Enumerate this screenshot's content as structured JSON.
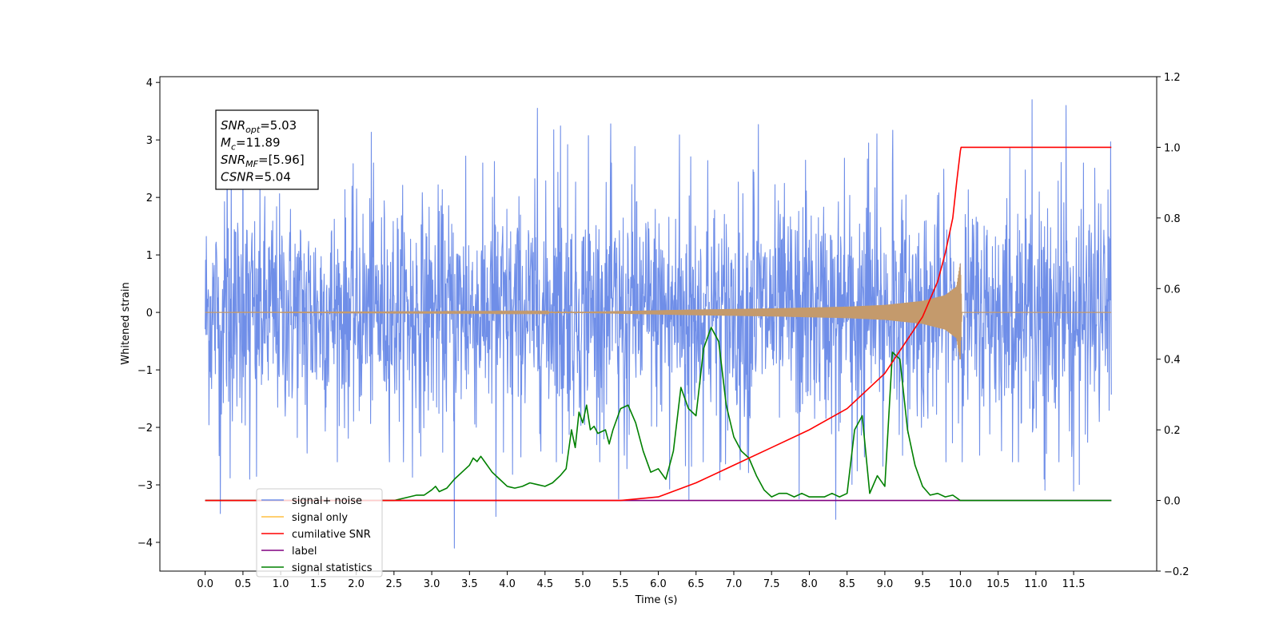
{
  "chart_data": {
    "type": "line",
    "title": "",
    "xlabel": "Time (s)",
    "ylabel": "Whitened strain",
    "xlim": [
      -0.6,
      12.6
    ],
    "ylim": [
      -4.5,
      4.1
    ],
    "y2lim": [
      -0.2,
      1.2
    ],
    "x_ticks": [
      0.0,
      0.5,
      1.0,
      1.5,
      2.0,
      2.5,
      3.0,
      3.5,
      4.0,
      4.5,
      5.0,
      5.5,
      6.0,
      6.5,
      7.0,
      7.5,
      8.0,
      8.5,
      9.0,
      9.5,
      10.0,
      10.5,
      11.0,
      11.5
    ],
    "x_tick_labels": [
      "0.0",
      "0.5",
      "1.0",
      "1.5",
      "2.0",
      "2.5",
      "3.0",
      "3.5",
      "4.0",
      "4.5",
      "5.0",
      "5.5",
      "6.0",
      "6.5",
      "7.0",
      "7.5",
      "8.0",
      "8.5",
      "9.0",
      "9.5",
      "10.0",
      "10.5",
      "11.0",
      "11.5"
    ],
    "y_ticks": [
      -4,
      -3,
      -2,
      -1,
      0,
      1,
      2,
      3,
      4
    ],
    "y_tick_labels": [
      "−4",
      "−3",
      "−2",
      "−1",
      "0",
      "1",
      "2",
      "3",
      "4"
    ],
    "y2_ticks": [
      -0.2,
      0.0,
      0.2,
      0.4,
      0.6,
      0.8,
      1.0,
      1.2
    ],
    "y2_tick_labels": [
      "−0.2",
      "0.0",
      "0.2",
      "0.4",
      "0.6",
      "0.8",
      "1.0",
      "1.2"
    ],
    "grid": false,
    "legend_position": "lower-left",
    "series": [
      {
        "name": "signal+ noise",
        "axis": "left",
        "color": "#6f8ee8",
        "description": "whitened noise, roughly within -2.3 to 2.3 with spikes up to about 3.7 and down to about -4.1",
        "x_range": [
          0.0,
          12.0
        ],
        "peaks": [
          [
            0.29,
            3.0
          ],
          [
            0.5,
            3.5
          ],
          [
            3.3,
            -4.1
          ],
          [
            4.4,
            3.55
          ],
          [
            8.35,
            -3.6
          ],
          [
            10.95,
            3.7
          ],
          [
            11.4,
            3.6
          ],
          [
            3.85,
            -3.55
          ],
          [
            0.2,
            -3.5
          ]
        ]
      },
      {
        "name": "signal only",
        "axis": "left",
        "color": "#c49a6c",
        "description": "chirp signal growing in amplitude until merger at t=10.0",
        "envelope": {
          "x": [
            0.0,
            5.0,
            6.5,
            7.5,
            8.5,
            9.0,
            9.5,
            9.8,
            9.95,
            10.0,
            10.02,
            12.0
          ],
          "amp": [
            0.0,
            0.01,
            0.05,
            0.07,
            0.1,
            0.13,
            0.2,
            0.3,
            0.45,
            0.87,
            0.0,
            0.0
          ]
        }
      },
      {
        "name": "cumilative SNR",
        "axis": "right",
        "color": "#ff0000",
        "x": [
          0.0,
          5.5,
          6.0,
          6.5,
          7.0,
          7.5,
          8.0,
          8.5,
          9.0,
          9.5,
          9.7,
          9.8,
          9.9,
          9.95,
          10.0,
          10.01,
          12.0
        ],
        "y": [
          0.0,
          0.0,
          0.01,
          0.05,
          0.1,
          0.15,
          0.2,
          0.26,
          0.36,
          0.52,
          0.62,
          0.7,
          0.8,
          0.9,
          0.99,
          1.0,
          1.0
        ]
      },
      {
        "name": "label",
        "axis": "right",
        "color": "#800080",
        "x": [
          0.0,
          12.0
        ],
        "y": [
          0.0,
          0.0
        ]
      },
      {
        "name": "signal statistics",
        "axis": "right",
        "color": "#008000",
        "x": [
          0.0,
          2.5,
          2.6,
          2.7,
          2.8,
          2.9,
          3.0,
          3.05,
          3.1,
          3.2,
          3.3,
          3.4,
          3.5,
          3.55,
          3.6,
          3.65,
          3.7,
          3.8,
          3.9,
          4.0,
          4.1,
          4.2,
          4.3,
          4.4,
          4.5,
          4.6,
          4.7,
          4.78,
          4.85,
          4.9,
          4.95,
          5.0,
          5.05,
          5.1,
          5.15,
          5.2,
          5.3,
          5.35,
          5.4,
          5.5,
          5.6,
          5.7,
          5.8,
          5.9,
          6.0,
          6.1,
          6.15,
          6.2,
          6.3,
          6.4,
          6.5,
          6.6,
          6.7,
          6.8,
          6.9,
          7.0,
          7.1,
          7.2,
          7.3,
          7.4,
          7.5,
          7.6,
          7.7,
          7.8,
          7.9,
          8.0,
          8.2,
          8.3,
          8.4,
          8.5,
          8.6,
          8.7,
          8.8,
          8.9,
          9.0,
          9.1,
          9.2,
          9.3,
          9.4,
          9.5,
          9.6,
          9.7,
          9.8,
          9.9,
          10.0,
          10.1,
          12.0
        ],
        "y": [
          0.0,
          0.0,
          0.005,
          0.01,
          0.015,
          0.015,
          0.03,
          0.04,
          0.025,
          0.035,
          0.06,
          0.08,
          0.1,
          0.12,
          0.11,
          0.125,
          0.11,
          0.08,
          0.06,
          0.04,
          0.035,
          0.04,
          0.05,
          0.045,
          0.04,
          0.05,
          0.07,
          0.09,
          0.2,
          0.15,
          0.25,
          0.22,
          0.27,
          0.2,
          0.21,
          0.19,
          0.2,
          0.16,
          0.2,
          0.26,
          0.27,
          0.22,
          0.14,
          0.08,
          0.09,
          0.06,
          0.1,
          0.14,
          0.32,
          0.26,
          0.24,
          0.43,
          0.49,
          0.45,
          0.27,
          0.18,
          0.14,
          0.12,
          0.07,
          0.03,
          0.01,
          0.02,
          0.02,
          0.01,
          0.02,
          0.01,
          0.01,
          0.02,
          0.01,
          0.02,
          0.2,
          0.24,
          0.02,
          0.07,
          0.04,
          0.42,
          0.4,
          0.2,
          0.1,
          0.04,
          0.015,
          0.02,
          0.01,
          0.015,
          0.0,
          0.0,
          0.0
        ]
      }
    ],
    "annotation": {
      "lines": [
        {
          "sym": "SNR",
          "sub": "opt",
          "rest": "=5.03"
        },
        {
          "sym": "M",
          "sub": "c",
          "rest": "=11.89"
        },
        {
          "sym": "SNR",
          "sub": "MF",
          "rest": "=[5.96]"
        },
        {
          "sym": "CSNR",
          "sub": "",
          "rest": "=5.04"
        }
      ]
    },
    "legend_overlap_text": "signal only"
  }
}
